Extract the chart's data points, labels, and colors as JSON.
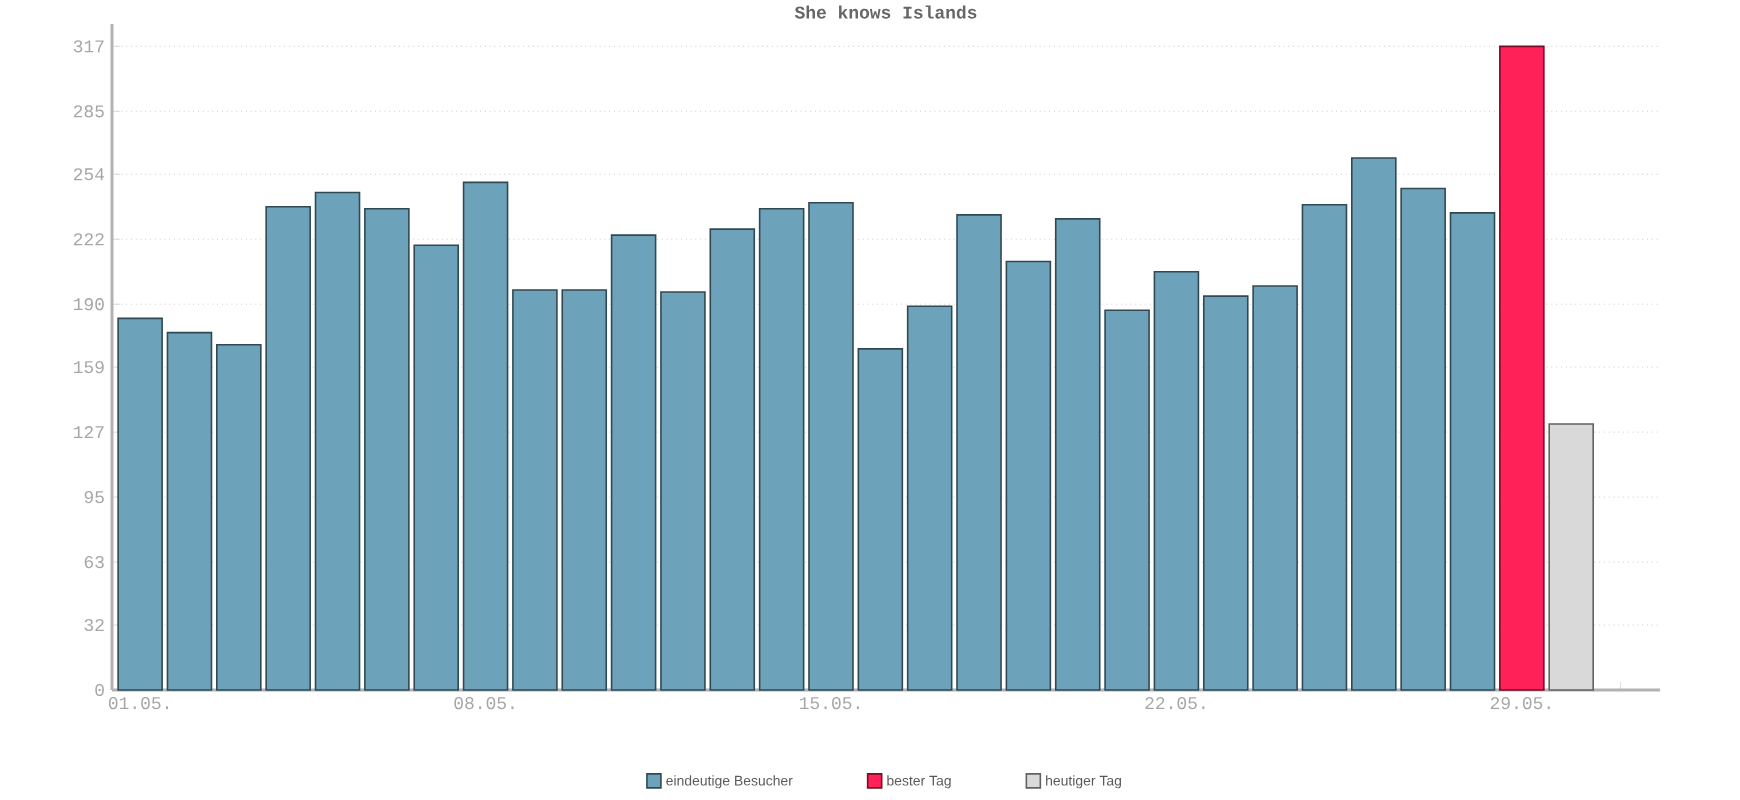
{
  "chart_data": {
    "type": "bar",
    "title": "She knows Islands",
    "categories": [
      "01.05.",
      null,
      null,
      null,
      null,
      null,
      null,
      "08.05.",
      null,
      null,
      null,
      null,
      null,
      null,
      "15.05.",
      null,
      null,
      null,
      null,
      null,
      null,
      "22.05.",
      null,
      null,
      null,
      null,
      null,
      null,
      "29.05.",
      null,
      null
    ],
    "series": [
      {
        "name": "eindeutige Besucher",
        "color": "#6ca3ba",
        "values": [
          183,
          176,
          170,
          238,
          245,
          237,
          219,
          250,
          197,
          197,
          224,
          196,
          227,
          237,
          240,
          168,
          189,
          234,
          211,
          232,
          187,
          206,
          194,
          199,
          239,
          262,
          247,
          235,
          null,
          null,
          null
        ]
      },
      {
        "name": "bester Tag",
        "color": "#ff2157",
        "values": [
          null,
          null,
          null,
          null,
          null,
          null,
          null,
          null,
          null,
          null,
          null,
          null,
          null,
          null,
          null,
          null,
          null,
          null,
          null,
          null,
          null,
          null,
          null,
          null,
          null,
          null,
          null,
          null,
          317,
          null,
          null
        ]
      },
      {
        "name": "heutiger Tag",
        "color": "#d9d9d9",
        "values": [
          null,
          null,
          null,
          null,
          null,
          null,
          null,
          null,
          null,
          null,
          null,
          null,
          null,
          null,
          null,
          null,
          null,
          null,
          null,
          null,
          null,
          null,
          null,
          null,
          null,
          null,
          null,
          null,
          null,
          131,
          null
        ]
      }
    ],
    "ylim": [
      0,
      328
    ],
    "yticks": [
      0,
      32,
      63,
      95,
      127,
      159,
      190,
      222,
      254,
      285,
      317
    ],
    "grid": "y",
    "legend": "bottom"
  }
}
